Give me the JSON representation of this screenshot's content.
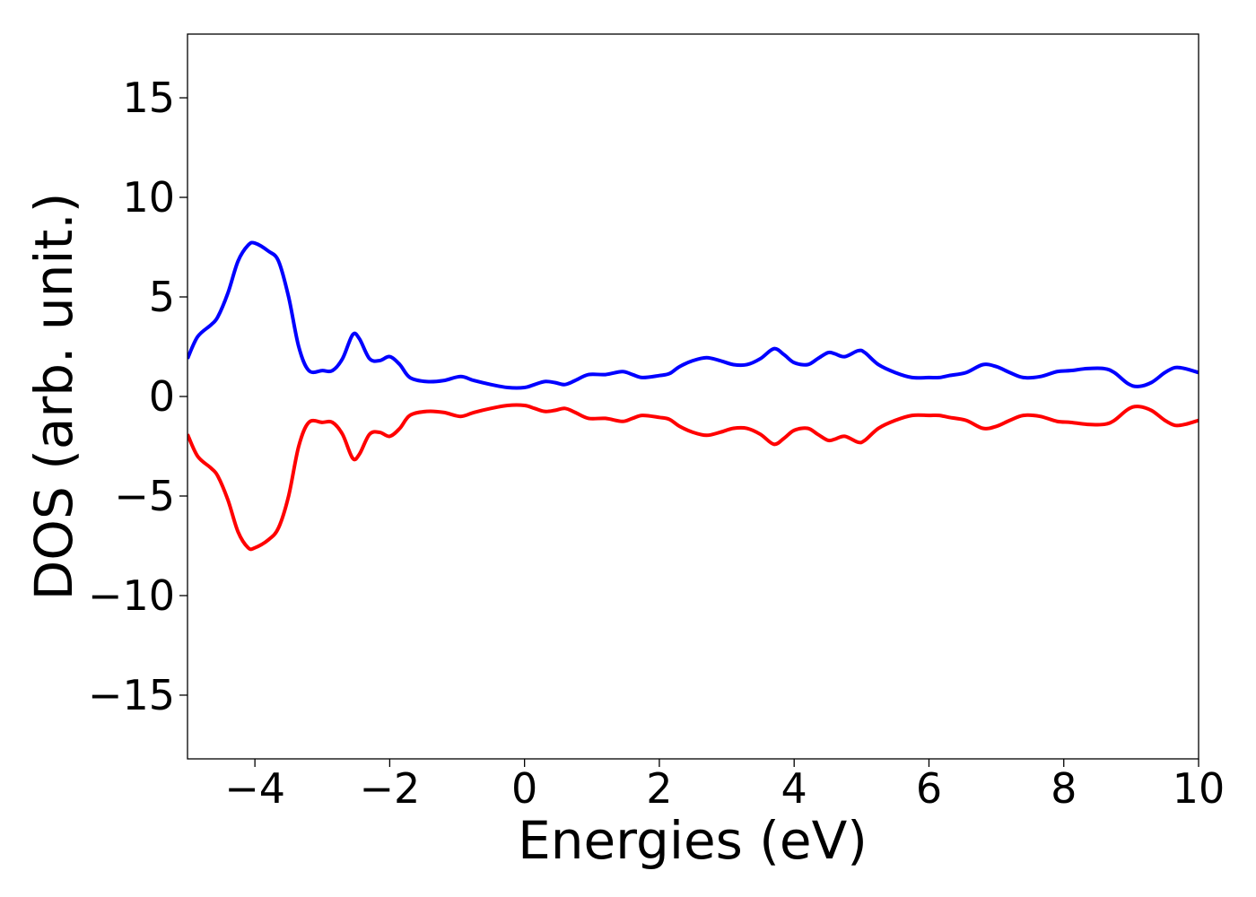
{
  "chart_data": {
    "type": "line",
    "xlabel": "Energies (eV)",
    "ylabel": "DOS (arb. unit.)",
    "xlim": [
      -5,
      10
    ],
    "ylim": [
      -18.2,
      18.2
    ],
    "grid": false,
    "x_ticks": [
      {
        "value": -4,
        "label": "−4"
      },
      {
        "value": -2,
        "label": "−2"
      },
      {
        "value": 0,
        "label": "0"
      },
      {
        "value": 2,
        "label": "2"
      },
      {
        "value": 4,
        "label": "4"
      },
      {
        "value": 6,
        "label": "6"
      },
      {
        "value": 8,
        "label": "8"
      },
      {
        "value": 10,
        "label": "10"
      }
    ],
    "y_ticks": [
      {
        "value": 15,
        "label": "15"
      },
      {
        "value": 10,
        "label": "10"
      },
      {
        "value": 5,
        "label": "5"
      },
      {
        "value": 0,
        "label": "0"
      },
      {
        "value": -5,
        "label": "−5"
      },
      {
        "value": -10,
        "label": "−10"
      },
      {
        "value": -15,
        "label": "−15"
      }
    ],
    "series": [
      {
        "color": "#0000ff",
        "points": [
          [
            -5.0,
            1.9
          ],
          [
            -4.85,
            3.0
          ],
          [
            -4.65,
            3.6
          ],
          [
            -4.55,
            4.0
          ],
          [
            -4.4,
            5.2
          ],
          [
            -4.25,
            6.8
          ],
          [
            -4.1,
            7.6
          ],
          [
            -4.0,
            7.7
          ],
          [
            -3.8,
            7.3
          ],
          [
            -3.65,
            6.8
          ],
          [
            -3.5,
            5.0
          ],
          [
            -3.35,
            2.5
          ],
          [
            -3.2,
            1.3
          ],
          [
            -3.0,
            1.3
          ],
          [
            -2.85,
            1.3
          ],
          [
            -2.7,
            1.9
          ],
          [
            -2.55,
            3.1
          ],
          [
            -2.45,
            2.9
          ],
          [
            -2.3,
            1.9
          ],
          [
            -2.15,
            1.8
          ],
          [
            -2.0,
            2.0
          ],
          [
            -1.85,
            1.6
          ],
          [
            -1.7,
            0.95
          ],
          [
            -1.45,
            0.75
          ],
          [
            -1.2,
            0.8
          ],
          [
            -0.95,
            1.0
          ],
          [
            -0.75,
            0.8
          ],
          [
            -0.5,
            0.6
          ],
          [
            -0.25,
            0.45
          ],
          [
            0.0,
            0.45
          ],
          [
            0.15,
            0.6
          ],
          [
            0.3,
            0.75
          ],
          [
            0.45,
            0.7
          ],
          [
            0.6,
            0.6
          ],
          [
            0.75,
            0.8
          ],
          [
            0.95,
            1.1
          ],
          [
            1.2,
            1.1
          ],
          [
            1.45,
            1.25
          ],
          [
            1.6,
            1.1
          ],
          [
            1.75,
            0.95
          ],
          [
            2.0,
            1.05
          ],
          [
            2.15,
            1.15
          ],
          [
            2.3,
            1.5
          ],
          [
            2.5,
            1.8
          ],
          [
            2.7,
            1.95
          ],
          [
            2.9,
            1.8
          ],
          [
            3.1,
            1.6
          ],
          [
            3.3,
            1.6
          ],
          [
            3.5,
            1.9
          ],
          [
            3.7,
            2.4
          ],
          [
            3.85,
            2.1
          ],
          [
            4.0,
            1.7
          ],
          [
            4.2,
            1.6
          ],
          [
            4.35,
            1.9
          ],
          [
            4.5,
            2.2
          ],
          [
            4.6,
            2.15
          ],
          [
            4.75,
            2.0
          ],
          [
            4.95,
            2.3
          ],
          [
            5.05,
            2.2
          ],
          [
            5.25,
            1.6
          ],
          [
            5.5,
            1.2
          ],
          [
            5.75,
            0.95
          ],
          [
            6.0,
            0.95
          ],
          [
            6.15,
            0.95
          ],
          [
            6.3,
            1.05
          ],
          [
            6.55,
            1.2
          ],
          [
            6.8,
            1.6
          ],
          [
            7.0,
            1.5
          ],
          [
            7.2,
            1.2
          ],
          [
            7.4,
            0.95
          ],
          [
            7.65,
            1.0
          ],
          [
            7.9,
            1.25
          ],
          [
            8.1,
            1.3
          ],
          [
            8.35,
            1.4
          ],
          [
            8.6,
            1.4
          ],
          [
            8.75,
            1.2
          ],
          [
            8.95,
            0.65
          ],
          [
            9.1,
            0.5
          ],
          [
            9.3,
            0.7
          ],
          [
            9.5,
            1.2
          ],
          [
            9.65,
            1.45
          ],
          [
            9.8,
            1.4
          ],
          [
            10.0,
            1.2
          ]
        ]
      },
      {
        "color": "#ff0000",
        "points": [
          [
            -5.0,
            -1.9
          ],
          [
            -4.85,
            -3.0
          ],
          [
            -4.65,
            -3.6
          ],
          [
            -4.55,
            -4.0
          ],
          [
            -4.4,
            -5.2
          ],
          [
            -4.25,
            -6.8
          ],
          [
            -4.1,
            -7.6
          ],
          [
            -4.0,
            -7.6
          ],
          [
            -3.8,
            -7.2
          ],
          [
            -3.65,
            -6.6
          ],
          [
            -3.5,
            -5.0
          ],
          [
            -3.35,
            -2.5
          ],
          [
            -3.2,
            -1.3
          ],
          [
            -3.0,
            -1.3
          ],
          [
            -2.85,
            -1.3
          ],
          [
            -2.7,
            -1.9
          ],
          [
            -2.55,
            -3.1
          ],
          [
            -2.45,
            -2.9
          ],
          [
            -2.3,
            -1.9
          ],
          [
            -2.15,
            -1.8
          ],
          [
            -2.0,
            -2.0
          ],
          [
            -1.85,
            -1.6
          ],
          [
            -1.7,
            -0.95
          ],
          [
            -1.45,
            -0.75
          ],
          [
            -1.2,
            -0.8
          ],
          [
            -0.95,
            -1.0
          ],
          [
            -0.75,
            -0.8
          ],
          [
            -0.5,
            -0.6
          ],
          [
            -0.25,
            -0.45
          ],
          [
            0.0,
            -0.45
          ],
          [
            0.15,
            -0.6
          ],
          [
            0.3,
            -0.75
          ],
          [
            0.45,
            -0.7
          ],
          [
            0.6,
            -0.6
          ],
          [
            0.75,
            -0.8
          ],
          [
            0.95,
            -1.1
          ],
          [
            1.2,
            -1.1
          ],
          [
            1.45,
            -1.25
          ],
          [
            1.6,
            -1.1
          ],
          [
            1.75,
            -0.95
          ],
          [
            2.0,
            -1.05
          ],
          [
            2.15,
            -1.15
          ],
          [
            2.3,
            -1.5
          ],
          [
            2.5,
            -1.8
          ],
          [
            2.7,
            -1.95
          ],
          [
            2.9,
            -1.8
          ],
          [
            3.1,
            -1.6
          ],
          [
            3.3,
            -1.6
          ],
          [
            3.5,
            -1.9
          ],
          [
            3.7,
            -2.4
          ],
          [
            3.85,
            -2.1
          ],
          [
            4.0,
            -1.7
          ],
          [
            4.2,
            -1.6
          ],
          [
            4.35,
            -1.9
          ],
          [
            4.5,
            -2.2
          ],
          [
            4.6,
            -2.15
          ],
          [
            4.75,
            -2.0
          ],
          [
            4.95,
            -2.3
          ],
          [
            5.05,
            -2.2
          ],
          [
            5.25,
            -1.6
          ],
          [
            5.5,
            -1.2
          ],
          [
            5.75,
            -0.95
          ],
          [
            6.0,
            -0.95
          ],
          [
            6.15,
            -0.95
          ],
          [
            6.3,
            -1.05
          ],
          [
            6.55,
            -1.2
          ],
          [
            6.8,
            -1.6
          ],
          [
            7.0,
            -1.5
          ],
          [
            7.2,
            -1.2
          ],
          [
            7.4,
            -0.95
          ],
          [
            7.65,
            -1.0
          ],
          [
            7.9,
            -1.25
          ],
          [
            8.1,
            -1.3
          ],
          [
            8.35,
            -1.4
          ],
          [
            8.6,
            -1.4
          ],
          [
            8.75,
            -1.2
          ],
          [
            8.95,
            -0.65
          ],
          [
            9.1,
            -0.5
          ],
          [
            9.3,
            -0.7
          ],
          [
            9.5,
            -1.2
          ],
          [
            9.65,
            -1.45
          ],
          [
            9.8,
            -1.4
          ],
          [
            10.0,
            -1.2
          ]
        ]
      }
    ]
  }
}
